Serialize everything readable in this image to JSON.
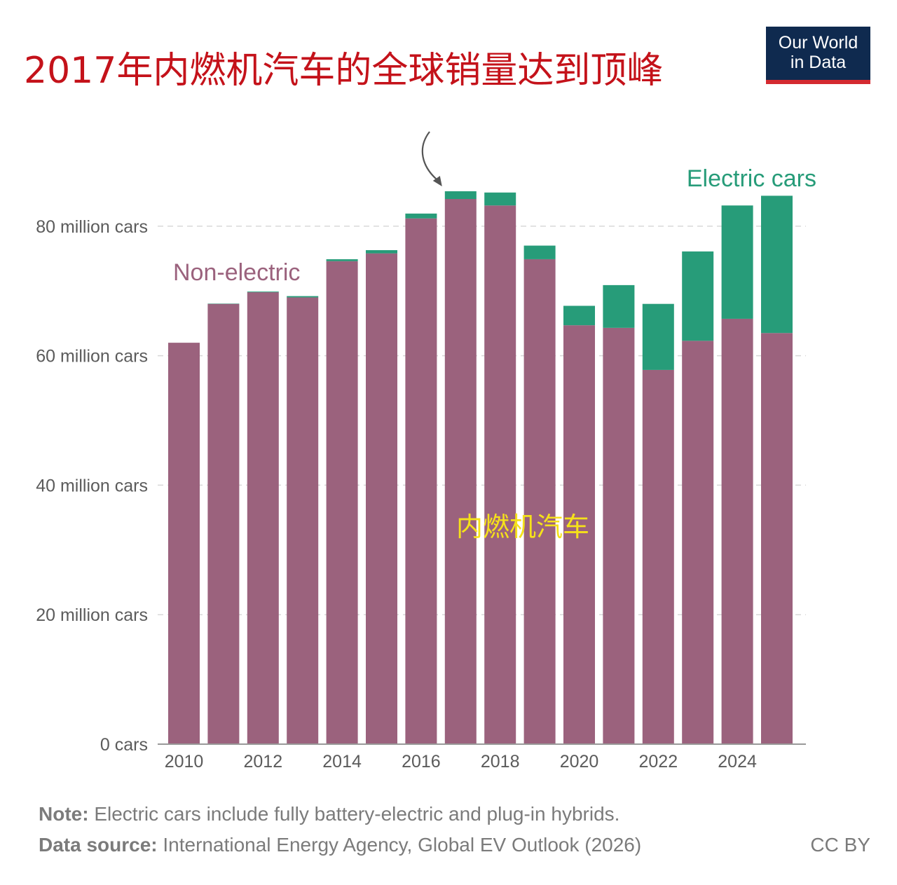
{
  "header": {
    "title": "2017年内燃机汽车的全球销量达到顶峰",
    "logo_line1": "Our World",
    "logo_line2": "in Data"
  },
  "footer": {
    "note_label": "Note:",
    "note_text": " Electric cars include fully battery-electric and plug-in hybrids.",
    "source_label": "Data source:",
    "source_text": " International Energy Agency, Global EV Outlook (2026)",
    "license": "CC BY"
  },
  "colors": {
    "non_electric": "#9b627d",
    "electric": "#279c79",
    "grid": "#d8d8d8",
    "axis": "#999999",
    "title": "#c4121a",
    "annotation": "#f5e11a"
  },
  "chart_data": {
    "type": "bar",
    "stacked": true,
    "title": "2017年内燃机汽车的全球销量达到顶峰",
    "categories": [
      "2010",
      "2011",
      "2012",
      "2013",
      "2014",
      "2015",
      "2016",
      "2017",
      "2018",
      "2019",
      "2020",
      "2021",
      "2022",
      "2023",
      "2024",
      "2025"
    ],
    "x_tick_labels": [
      "2010",
      "2012",
      "2014",
      "2016",
      "2018",
      "2020",
      "2022",
      "2024"
    ],
    "series": [
      {
        "name": "Non-electric",
        "values": [
          62.0,
          68.0,
          69.8,
          69.0,
          74.6,
          75.8,
          81.2,
          84.2,
          83.2,
          74.9,
          64.7,
          64.3,
          57.8,
          62.3,
          65.7,
          63.5
        ]
      },
      {
        "name": "Electric cars",
        "values": [
          0.0,
          0.05,
          0.1,
          0.2,
          0.3,
          0.5,
          0.75,
          1.2,
          2.0,
          2.1,
          3.0,
          6.6,
          10.2,
          13.8,
          17.5,
          21.2
        ]
      }
    ],
    "y_ticks": [
      0,
      20,
      40,
      60,
      80
    ],
    "y_tick_labels": [
      "0 cars",
      "20 million cars",
      "40 million cars",
      "60 million cars",
      "80 million cars"
    ],
    "ylim": [
      0,
      92
    ],
    "grid": true,
    "annotations": {
      "non_electric_label": "Non-electric",
      "electric_label": "Electric cars",
      "center_label": "内燃机汽车",
      "peak_arrow_year": "2017"
    }
  }
}
